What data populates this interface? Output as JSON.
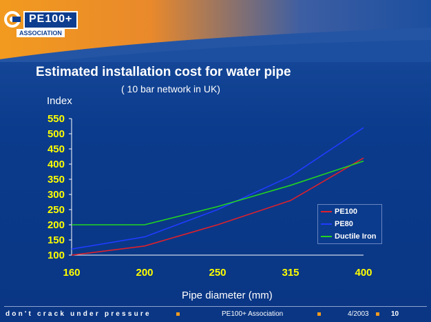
{
  "header": {
    "logo_text": "PE100+",
    "logo_sub": "ASSOCIATION"
  },
  "colors": {
    "background": "#0b3b8c",
    "banner_orange": "#f29a1f",
    "tick_yellow": "#ffff00"
  },
  "chart_data": {
    "type": "line",
    "title": "Estimated installation cost for water pipe",
    "subtitle": "( 10 bar network in UK)",
    "ylabel": "Index",
    "xlabel": "Pipe diameter (mm)",
    "categories": [
      "160",
      "200",
      "250",
      "315",
      "400"
    ],
    "x": [
      160,
      200,
      250,
      315,
      400
    ],
    "ylim": [
      100,
      550
    ],
    "yticks": [
      100,
      150,
      200,
      250,
      300,
      350,
      400,
      450,
      500,
      550
    ],
    "grid": false,
    "legend_position": "bottom-right",
    "series": [
      {
        "name": "PE100",
        "color": "#e0202a",
        "values": [
          100,
          130,
          200,
          280,
          420
        ]
      },
      {
        "name": "PE80",
        "color": "#1f3cff",
        "values": [
          120,
          160,
          250,
          360,
          520
        ]
      },
      {
        "name": "Ductile Iron",
        "color": "#22d620",
        "values": [
          200,
          200,
          260,
          330,
          410
        ]
      }
    ]
  },
  "footer": {
    "tagline": "don't crack under pressure",
    "org": "PE100+ Association",
    "date": "4/2003",
    "page": "10"
  }
}
